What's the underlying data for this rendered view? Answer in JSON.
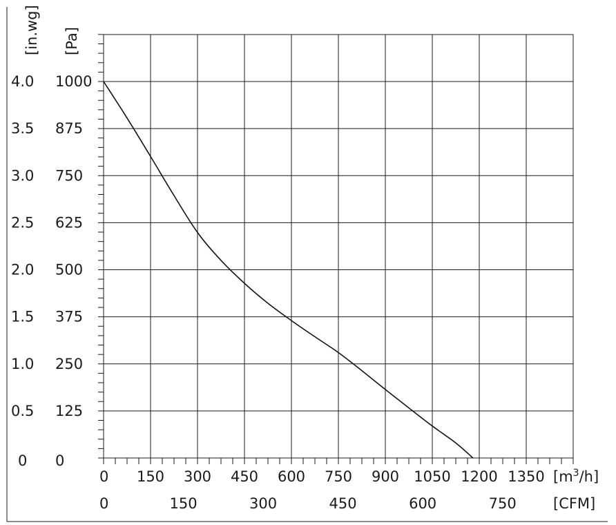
{
  "chart_data": {
    "type": "line",
    "x_unit_label": "[m³/h]",
    "x_unit_main": "[m",
    "x_unit_sup": "3",
    "x_unit_tail": "/h]",
    "x2_unit_label": "[CFM]",
    "y_unit_label": "[Pa]",
    "y2_unit_label": "[in.wg]",
    "xlim": [
      0,
      1500
    ],
    "ylim": [
      0,
      1000
    ],
    "x_ticks": [
      {
        "value": 0,
        "label": "0"
      },
      {
        "value": 150,
        "label": "150"
      },
      {
        "value": 300,
        "label": "300"
      },
      {
        "value": 450,
        "label": "450"
      },
      {
        "value": 600,
        "label": "600"
      },
      {
        "value": 750,
        "label": "750"
      },
      {
        "value": 900,
        "label": "900"
      },
      {
        "value": 1050,
        "label": "1050"
      },
      {
        "value": 1200,
        "label": "1200"
      },
      {
        "value": 1350,
        "label": "1350"
      }
    ],
    "x2_ticks": [
      {
        "value": 0,
        "label": "0"
      },
      {
        "value": 150,
        "label": "150"
      },
      {
        "value": 300,
        "label": "300"
      },
      {
        "value": 450,
        "label": "450"
      },
      {
        "value": 600,
        "label": "600"
      },
      {
        "value": 750,
        "label": "750"
      }
    ],
    "y_ticks": [
      {
        "value": 0,
        "label": "0"
      },
      {
        "value": 125,
        "label": "125"
      },
      {
        "value": 250,
        "label": "250"
      },
      {
        "value": 375,
        "label": "375"
      },
      {
        "value": 500,
        "label": "500"
      },
      {
        "value": 625,
        "label": "625"
      },
      {
        "value": 750,
        "label": "750"
      },
      {
        "value": 875,
        "label": "875"
      },
      {
        "value": 1000,
        "label": "1000"
      }
    ],
    "y2_ticks": [
      {
        "value": 0,
        "label": "0"
      },
      {
        "value": 0.5,
        "label": "0.5"
      },
      {
        "value": 1.0,
        "label": "1.0"
      },
      {
        "value": 1.5,
        "label": "1.5"
      },
      {
        "value": 2.0,
        "label": "2.0"
      },
      {
        "value": 2.5,
        "label": "2.5"
      },
      {
        "value": 3.0,
        "label": "3.0"
      },
      {
        "value": 3.5,
        "label": "3.5"
      },
      {
        "value": 4.0,
        "label": "4.0"
      }
    ],
    "grid": true,
    "series": [
      {
        "x": [
          0,
          75,
          150,
          225,
          300,
          375,
          450,
          525,
          600,
          675,
          750,
          825,
          900,
          975,
          1050,
          1125,
          1180
        ],
        "y": [
          1000,
          903,
          801,
          697,
          599,
          525,
          464,
          411,
          365,
          322,
          280,
          232,
          182,
          133,
          85,
          40,
          0
        ]
      }
    ]
  }
}
